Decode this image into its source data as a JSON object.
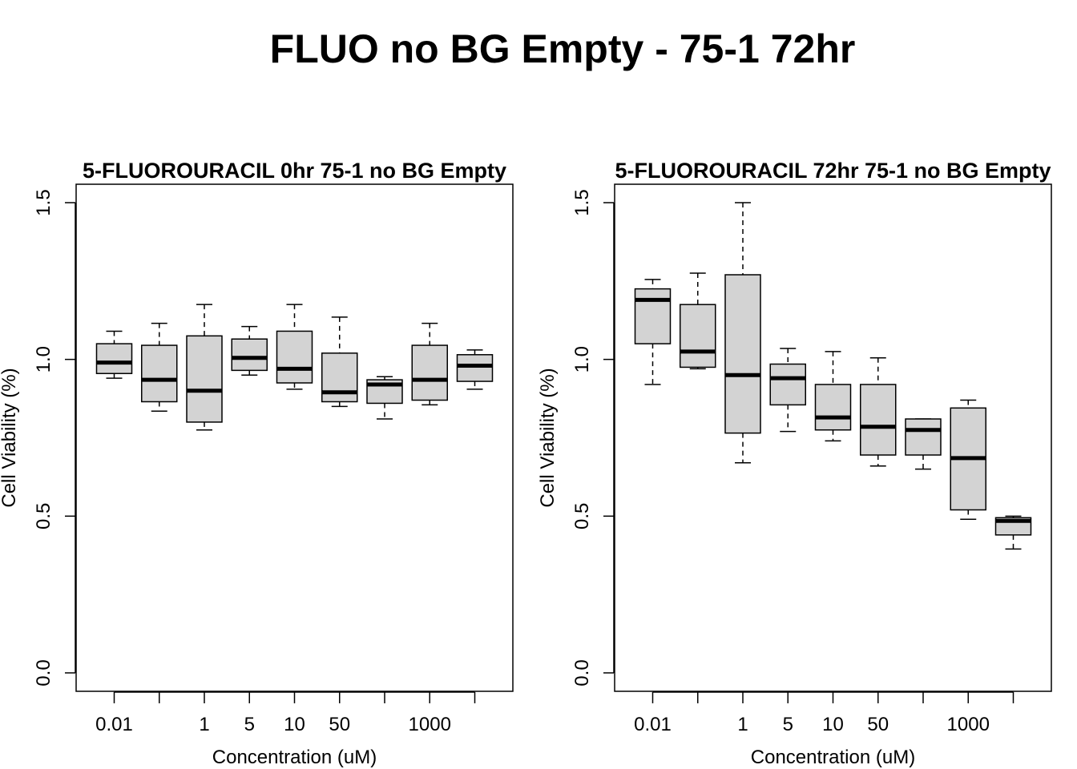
{
  "page_title": "FLUO no BG Empty - 75-1 72hr",
  "chart_data": [
    {
      "type": "box",
      "title": "5-FLUOROURACIL 0hr 75-1 no BG Empty",
      "xlabel": "Concentration (uM)",
      "ylabel": "Cell Viability (%)",
      "ylim": [
        0,
        1.5
      ],
      "yticks": [
        "0.0",
        "0.5",
        "1.0",
        "1.5"
      ],
      "categories": [
        "0.01",
        "",
        "1",
        "5",
        "10",
        "50",
        "",
        "1000",
        ""
      ],
      "box_color": "#d3d3d3",
      "boxes": [
        {
          "min": 0.94,
          "q1": 0.955,
          "median": 0.99,
          "q3": 1.05,
          "max": 1.09
        },
        {
          "min": 0.835,
          "q1": 0.865,
          "median": 0.935,
          "q3": 1.045,
          "max": 1.115
        },
        {
          "min": 0.775,
          "q1": 0.8,
          "median": 0.9,
          "q3": 1.075,
          "max": 1.175
        },
        {
          "min": 0.95,
          "q1": 0.965,
          "median": 1.005,
          "q3": 1.065,
          "max": 1.105
        },
        {
          "min": 0.905,
          "q1": 0.925,
          "median": 0.97,
          "q3": 1.09,
          "max": 1.175
        },
        {
          "min": 0.85,
          "q1": 0.865,
          "median": 0.895,
          "q3": 1.02,
          "max": 1.135
        },
        {
          "min": 0.81,
          "q1": 0.86,
          "median": 0.92,
          "q3": 0.935,
          "max": 0.945
        },
        {
          "min": 0.855,
          "q1": 0.87,
          "median": 0.935,
          "q3": 1.045,
          "max": 1.115
        },
        {
          "min": 0.905,
          "q1": 0.93,
          "median": 0.98,
          "q3": 1.015,
          "max": 1.03
        }
      ]
    },
    {
      "type": "box",
      "title": "5-FLUOROURACIL 72hr 75-1 no BG Empty",
      "xlabel": "Concentration (uM)",
      "ylabel": "Cell Viability (%)",
      "ylim": [
        0,
        1.5
      ],
      "yticks": [
        "0.0",
        "0.5",
        "1.0",
        "1.5"
      ],
      "categories": [
        "0.01",
        "",
        "1",
        "5",
        "10",
        "50",
        "",
        "1000",
        ""
      ],
      "box_color": "#d3d3d3",
      "boxes": [
        {
          "min": 0.92,
          "q1": 1.05,
          "median": 1.19,
          "q3": 1.225,
          "max": 1.255
        },
        {
          "min": 0.97,
          "q1": 0.975,
          "median": 1.025,
          "q3": 1.175,
          "max": 1.275
        },
        {
          "min": 0.67,
          "q1": 0.765,
          "median": 0.95,
          "q3": 1.27,
          "max": 1.5
        },
        {
          "min": 0.77,
          "q1": 0.855,
          "median": 0.94,
          "q3": 0.985,
          "max": 1.035
        },
        {
          "min": 0.74,
          "q1": 0.775,
          "median": 0.815,
          "q3": 0.92,
          "max": 1.025
        },
        {
          "min": 0.66,
          "q1": 0.695,
          "median": 0.785,
          "q3": 0.92,
          "max": 1.005
        },
        {
          "min": 0.65,
          "q1": 0.695,
          "median": 0.775,
          "q3": 0.81,
          "max": 0.81
        },
        {
          "min": 0.49,
          "q1": 0.52,
          "median": 0.685,
          "q3": 0.845,
          "max": 0.87
        },
        {
          "min": 0.395,
          "q1": 0.44,
          "median": 0.485,
          "q3": 0.495,
          "max": 0.5
        }
      ]
    }
  ]
}
